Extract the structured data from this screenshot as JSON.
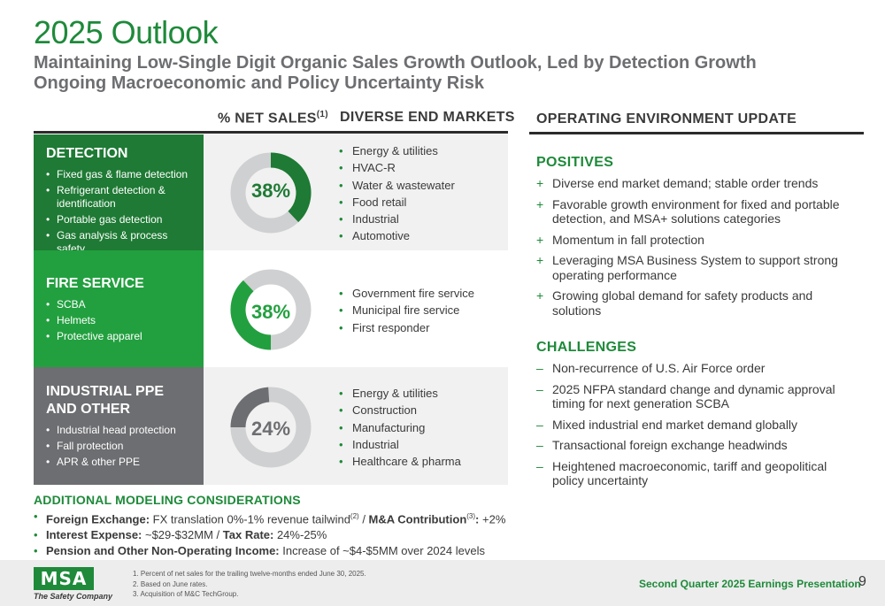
{
  "title": "2025 Outlook",
  "subtitle": [
    "Maintaining Low-Single Digit Organic Sales Growth Outlook, Led by Detection Growth",
    "Ongoing Macroeconomic and Policy Uncertainty Risk"
  ],
  "columns": {
    "net_sales": "% NET SALES",
    "net_sales_note": "(1)",
    "end_markets": "DIVERSE END MARKETS",
    "environment": "OPERATING ENVIRONMENT UPDATE"
  },
  "colors": {
    "green": "#1e8a3a",
    "dark_green": "#1e7a34",
    "mid_green": "#22a03f",
    "gray": "#6d6e71",
    "ring_gray": "#cfd0d1"
  },
  "segments": [
    {
      "title": "DETECTION",
      "items": [
        "Fixed gas & flame detection",
        "Refrigerant detection & identification",
        "Portable gas detection",
        "Gas analysis & process safety"
      ],
      "percent_label": "38%",
      "share": 0.38,
      "markets": [
        "Energy & utilities",
        "HVAC-R",
        "Water & wastewater",
        "Food retail",
        "Industrial",
        "Automotive"
      ]
    },
    {
      "title": "FIRE SERVICE",
      "items": [
        "SCBA",
        "Helmets",
        "Protective apparel"
      ],
      "percent_label": "38%",
      "share": 0.38,
      "markets": [
        "Government fire service",
        "Municipal fire service",
        "First responder"
      ]
    },
    {
      "title": "INDUSTRIAL PPE AND OTHER",
      "items": [
        "Industrial head protection",
        "Fall protection",
        "APR & other PPE"
      ],
      "percent_label": "24%",
      "share": 0.24,
      "markets": [
        "Energy & utilities",
        "Construction",
        "Manufacturing",
        "Industrial",
        "Healthcare & pharma"
      ]
    }
  ],
  "positives": {
    "title": "POSITIVES",
    "mark": "+",
    "items": [
      "Diverse end market demand; stable order trends",
      "Favorable growth environment for fixed and portable detection, and MSA+ solutions categories",
      "Momentum in fall protection",
      "Leveraging MSA Business System to support strong operating performance",
      "Growing global demand for safety products and solutions"
    ]
  },
  "challenges": {
    "title": "CHALLENGES",
    "mark": "–",
    "items": [
      "Non-recurrence of U.S. Air Force order",
      "2025 NFPA standard change and dynamic approval timing for next generation SCBA",
      "Mixed industrial end market demand globally",
      "Transactional foreign exchange headwinds",
      "Heightened macroeconomic, tariff and geopolitical policy uncertainty"
    ]
  },
  "additional": {
    "title": "ADDITIONAL MODELING CONSIDERATIONS",
    "line1": {
      "fx_label": "Foreign Exchange:",
      "fx_text": " FX translation 0%-1% revenue tailwind",
      "fx_note": "(2)",
      "sep": " / ",
      "ma_label": "M&A Contribution",
      "ma_note": "(3)",
      "ma_colon": ":",
      "ma_text": " +2%"
    },
    "line2": {
      "int_label": "Interest Expense:",
      "int_text": " ~$29-$32MM / ",
      "tax_label": "Tax Rate:",
      "tax_text": " 24%-25%"
    },
    "line3": {
      "pen_label": "Pension and Other Non-Operating Income:",
      "pen_text": " Increase of ~$4-$5MM over 2024 levels"
    }
  },
  "footer": {
    "logo": "MSA",
    "tagline": "The Safety Company",
    "notes": [
      "1. Percent of net sales for the trailing twelve-months ended June 30, 2025.",
      "2. Based on June rates.",
      "3. Acquisition of M&C TechGroup."
    ],
    "presentation": "Second Quarter 2025 Earnings Presentation",
    "page": "9"
  }
}
